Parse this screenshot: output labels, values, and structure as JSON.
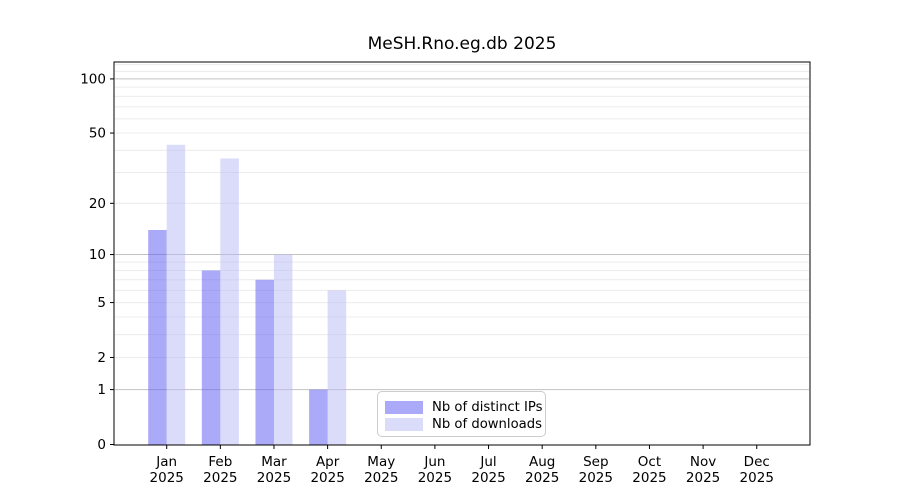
{
  "figure": {
    "title": "MeSH.Rno.eg.db 2025"
  },
  "chart_data": {
    "type": "bar",
    "title": "MeSH.Rno.eg.db 2025",
    "categories": [
      "Jan",
      "Feb",
      "Mar",
      "Apr",
      "May",
      "Jun",
      "Jul",
      "Aug",
      "Sep",
      "Oct",
      "Nov",
      "Dec"
    ],
    "category_year": "2025",
    "series": [
      {
        "name": "Nb of distinct IPs",
        "color": "rgba(85,85,241,0.5)",
        "color_on_white": "#aaaaf8",
        "values": [
          14,
          8,
          7,
          1,
          0,
          0,
          0,
          0,
          0,
          0,
          0,
          0
        ]
      },
      {
        "name": "Nb of downloads",
        "color": "rgba(183,183,245,0.5)",
        "color_on_white": "#dbdbfa",
        "values": [
          43,
          36,
          10,
          6,
          0,
          0,
          0,
          0,
          0,
          0,
          0,
          0
        ]
      }
    ],
    "y_axis": {
      "scale": "log10(1+x)",
      "ticks": [
        0,
        1,
        2,
        5,
        10,
        20,
        50,
        100
      ],
      "major_gridlines": [
        1,
        10,
        100
      ],
      "minor_gridlines": [
        2,
        3,
        4,
        5,
        6,
        7,
        8,
        9,
        20,
        30,
        40,
        50,
        60,
        70,
        80,
        90,
        110,
        120
      ],
      "ylim": [
        0,
        124
      ]
    },
    "legend": {
      "position": "lower-center"
    },
    "grid": true
  },
  "colors": {
    "major_grid": "#c3c3c3",
    "minor_grid": "#ececec",
    "spine": "#000000",
    "text": "#000000",
    "legend_border": "#cccccc"
  }
}
